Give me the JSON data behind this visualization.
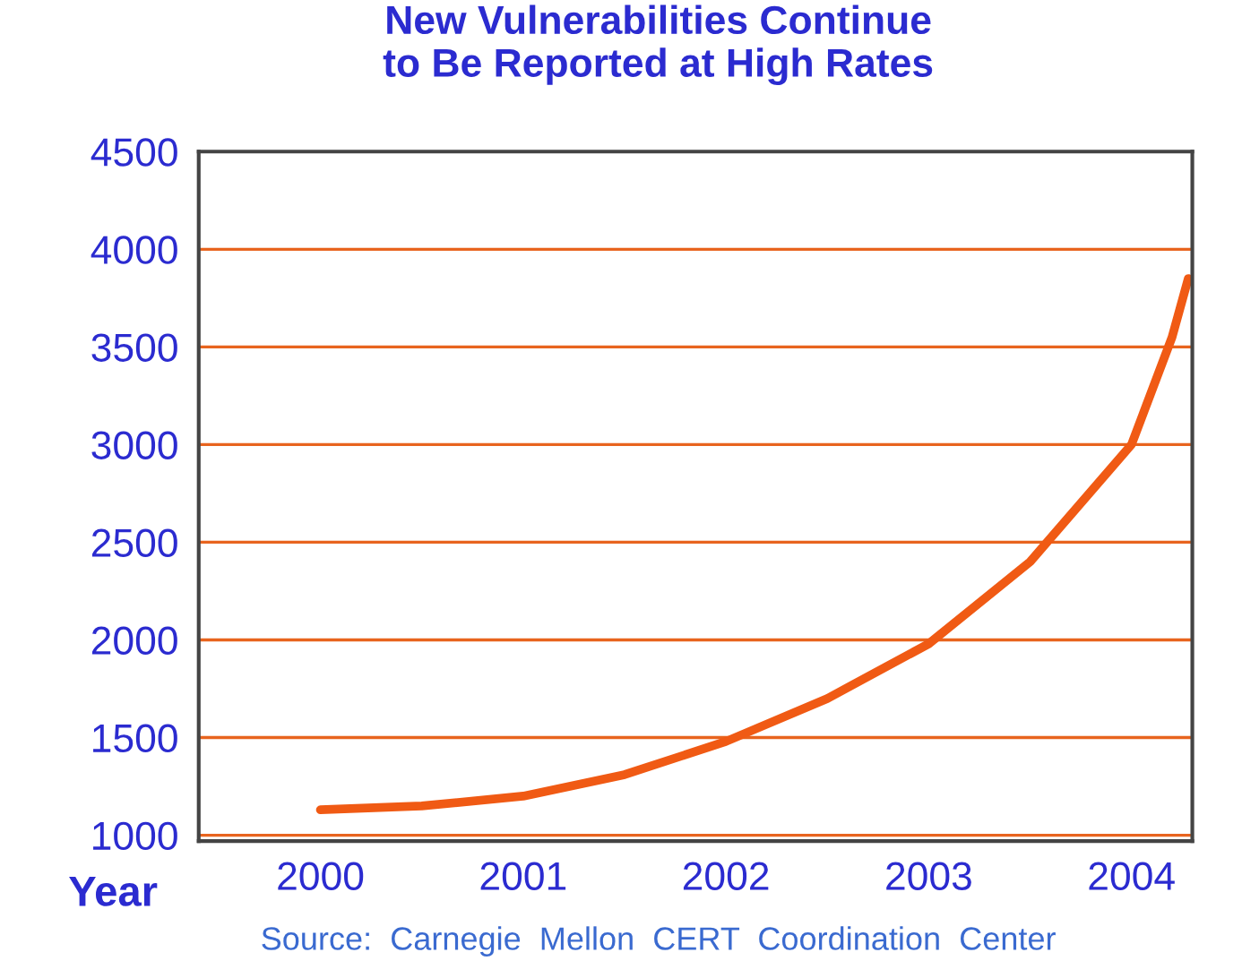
{
  "chart_data": {
    "type": "line",
    "title": "New Vulnerabilities Continue\nto Be Reported at High Rates",
    "xlabel": "Year",
    "x": [
      2000,
      2000.5,
      2001,
      2001.5,
      2002,
      2002.5,
      2003,
      2003.5,
      2004,
      2004.2,
      2004.28
    ],
    "series": [
      {
        "color": "#f05a14",
        "values": [
          1130,
          1150,
          1200,
          1310,
          1480,
          1700,
          1980,
          2400,
          3000,
          3550,
          3850
        ]
      }
    ],
    "xlim": [
      1999.4,
      2004.3
    ],
    "xticks": [
      2000,
      2001,
      2002,
      2003,
      2004
    ],
    "ylim": [
      970,
      4500
    ],
    "yticks": [
      1000,
      1500,
      2000,
      2500,
      3000,
      3500,
      4000,
      4500
    ],
    "grid": "y",
    "marker": "none",
    "line_style": "solid",
    "annotations": [
      "Source:  Carnegie  Mellon  CERT  Coordination  Center"
    ]
  }
}
